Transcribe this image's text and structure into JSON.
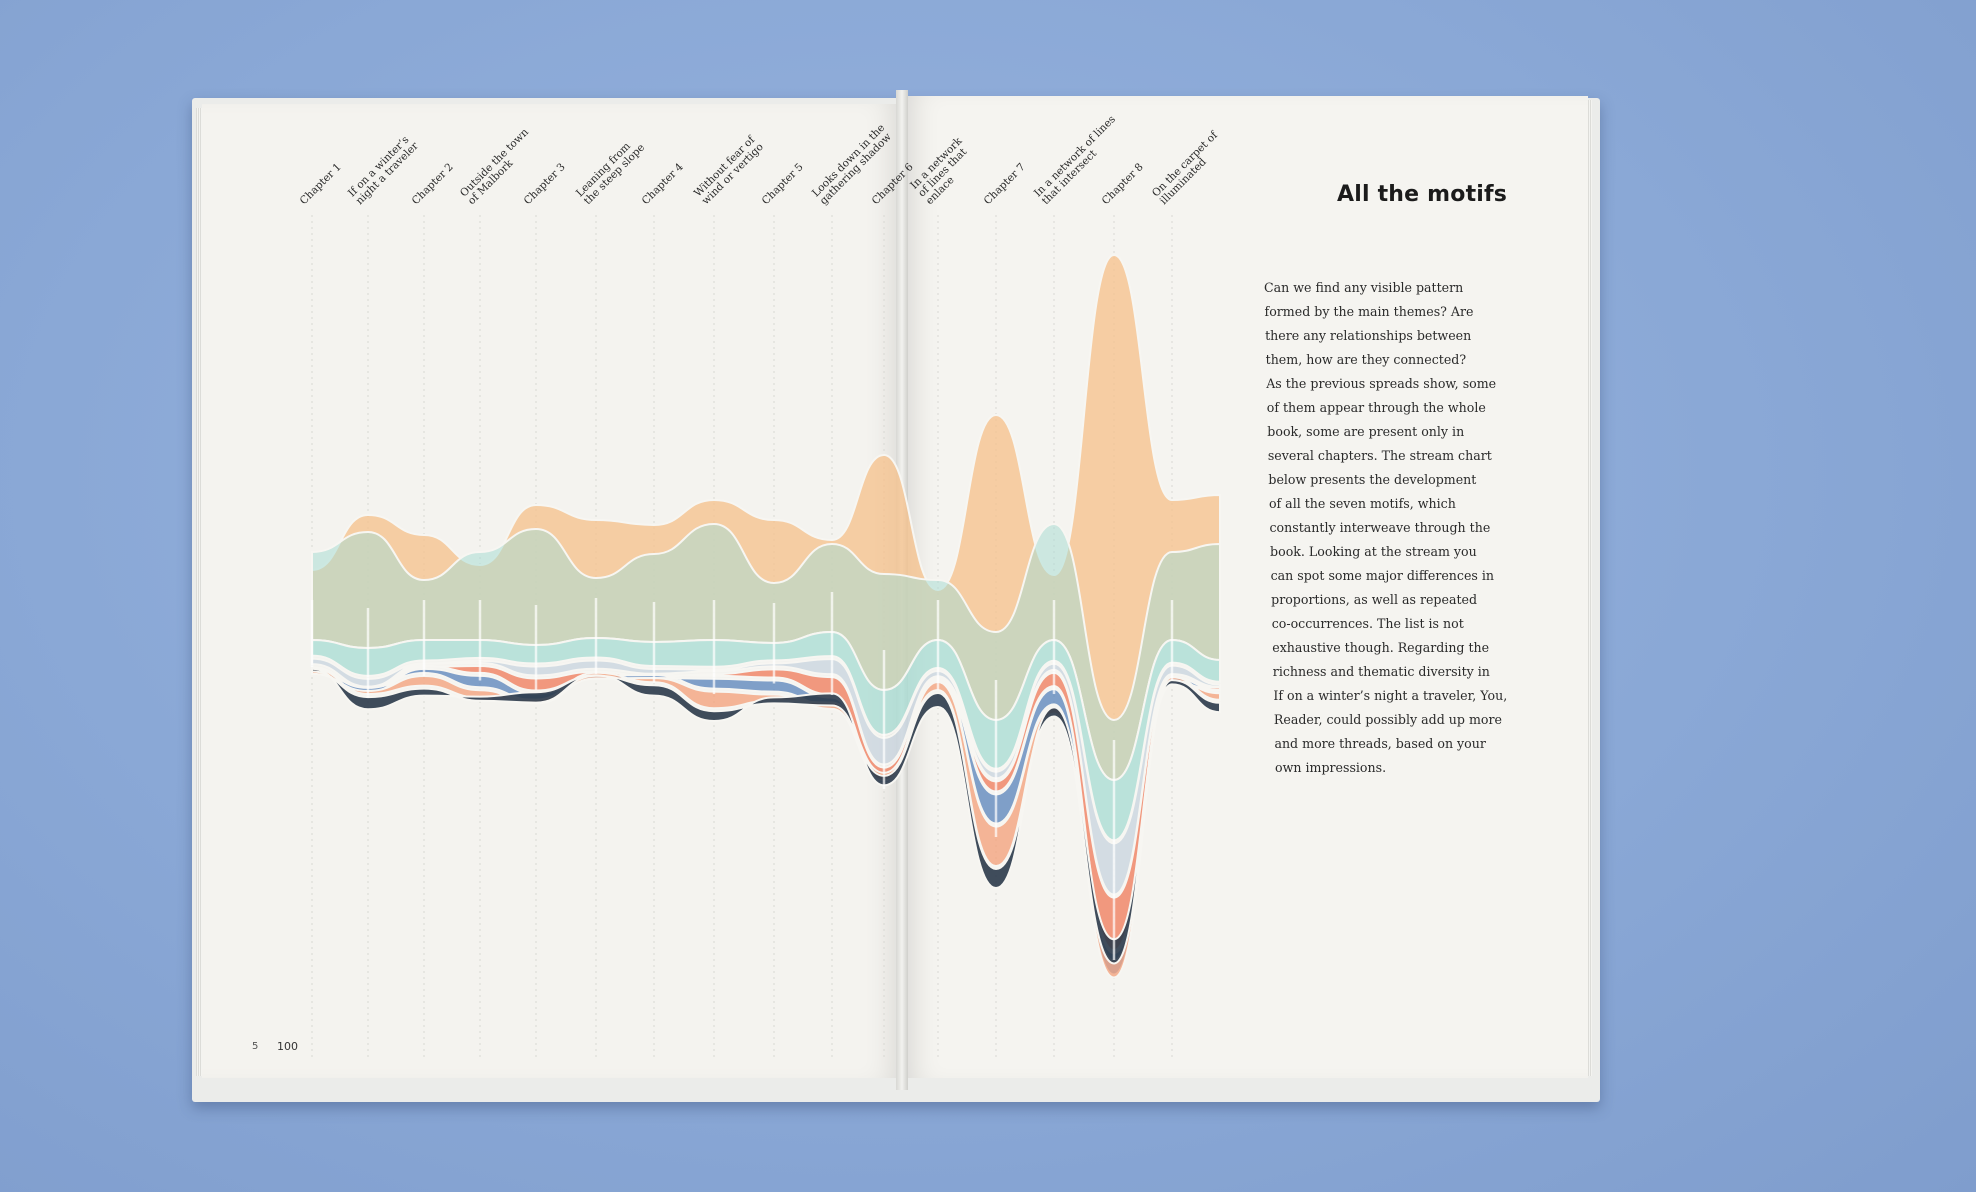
{
  "spread": {
    "title": "All the motifs",
    "body_lines": [
      "Can we find any visible pattern",
      "formed by the main themes? Are",
      "there any relationships between",
      "them, how are they connected?",
      "As the previous spreads show, some",
      "of them appear through the whole",
      "book, some are present only in",
      "several chapters. The stream chart",
      "below presents the development",
      "of all the seven motifs, which",
      "constantly interweave through the",
      "book. Looking at the stream you",
      "can spot some major differences in",
      "proportions, as well as repeated",
      "co-occurrences. The list is not",
      "exhaustive though. Regarding the",
      "richness and thematic diversity in",
      "If on a winter’s night a traveler, You,",
      "Reader, could possibly add up more",
      "and more threads, based on your",
      "own impressions."
    ],
    "page_number": "100",
    "page_mark": "5"
  },
  "chart_data": {
    "type": "area",
    "chart_subtype": "streamgraph",
    "title": "",
    "categories": [
      [
        "Chapter 1"
      ],
      [
        "If on a winter’s",
        "night a traveler"
      ],
      [
        "Chapter 2"
      ],
      [
        "Outside the town",
        "of Malbork"
      ],
      [
        "Chapter 3"
      ],
      [
        "Leaning from",
        "the steep slope"
      ],
      [
        "Chapter 4"
      ],
      [
        "Without fear of",
        "wind or vertigo"
      ],
      [
        "Chapter 5"
      ],
      [
        "Looks down in the",
        "gathering shadow"
      ],
      [
        "Chapter 6"
      ],
      [
        "In a network",
        "of lines that",
        "enlace"
      ],
      [
        "Chapter 7"
      ],
      [
        "In a network of lines",
        "that intersect"
      ],
      [
        "Chapter 8"
      ],
      [
        "On the carpet of",
        "illuminated"
      ]
    ],
    "motif_colors": [
      "#f5c08a",
      "#a9ddd3",
      "#c9d5df",
      "#f07d5e",
      "#5d86bd",
      "#f3a27c",
      "#2b3a4a"
    ]
  }
}
